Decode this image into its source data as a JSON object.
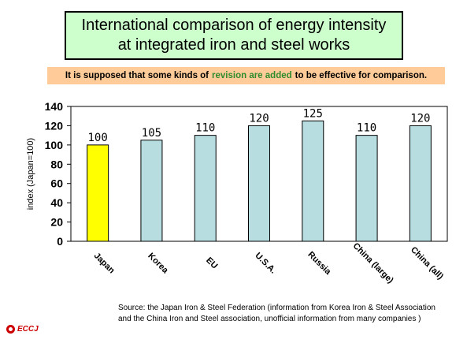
{
  "title": {
    "line1": "International comparison of energy intensity",
    "line2": "at integrated iron and steel works"
  },
  "note": {
    "before": "It is supposed that some kinds of",
    "highlight": "revision are added",
    "after": "to be effective for comparison."
  },
  "source": {
    "line1": "Source: the Japan Iron & Steel Federation  (information from Korea Iron & Steel Association",
    "line2": "and the China Iron and Steel association, unofficial information from many companies )"
  },
  "logo": {
    "text": "ECCJ"
  },
  "colors": {
    "highlight_bar": "#ffff00",
    "bar": "#b7dde0",
    "title_bg": "#ccffcc",
    "note_bg": "#ffcc99"
  },
  "chart_data": {
    "type": "bar",
    "title": "",
    "xlabel": "",
    "ylabel": "index  (Japan=100)",
    "ylim": [
      0,
      140
    ],
    "yticks": [
      0,
      20,
      40,
      60,
      80,
      100,
      120,
      140
    ],
    "grid": false,
    "categories": [
      "Japan",
      "Korea",
      "EU",
      "U.S.A.",
      "Russia",
      "China (large)",
      "China (all)"
    ],
    "values": [
      100,
      105,
      110,
      120,
      125,
      110,
      120
    ],
    "value_labels": [
      "100",
      "105",
      "110",
      "120",
      "125",
      "110",
      "120"
    ]
  }
}
